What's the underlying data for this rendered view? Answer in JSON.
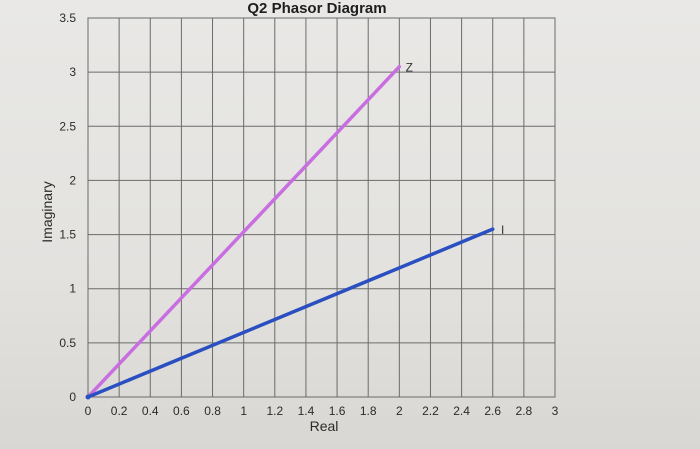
{
  "chart_data": {
    "type": "line",
    "title": "Q2 Phasor Diagram",
    "xlabel": "Real",
    "ylabel": "Imaginary",
    "xlim": [
      0,
      3
    ],
    "ylim": [
      0,
      3.5
    ],
    "x_ticks": [
      "0",
      "0.2",
      "0.4",
      "0.6",
      "0.8",
      "1",
      "1.2",
      "1.4",
      "1.6",
      "1.8",
      "2",
      "2.2",
      "2.4",
      "2.6",
      "2.8",
      "3"
    ],
    "y_ticks": [
      "0",
      "0.5",
      "1",
      "1.5",
      "2",
      "2.5",
      "3",
      "3.5"
    ],
    "grid": true,
    "series": [
      {
        "name": "Z",
        "color": "#c86ee0",
        "x": [
          0,
          2
        ],
        "y": [
          0,
          3.05
        ]
      },
      {
        "name": "I",
        "color": "#2a4fc0",
        "x": [
          0,
          2.6
        ],
        "y": [
          0,
          1.55
        ]
      }
    ]
  }
}
